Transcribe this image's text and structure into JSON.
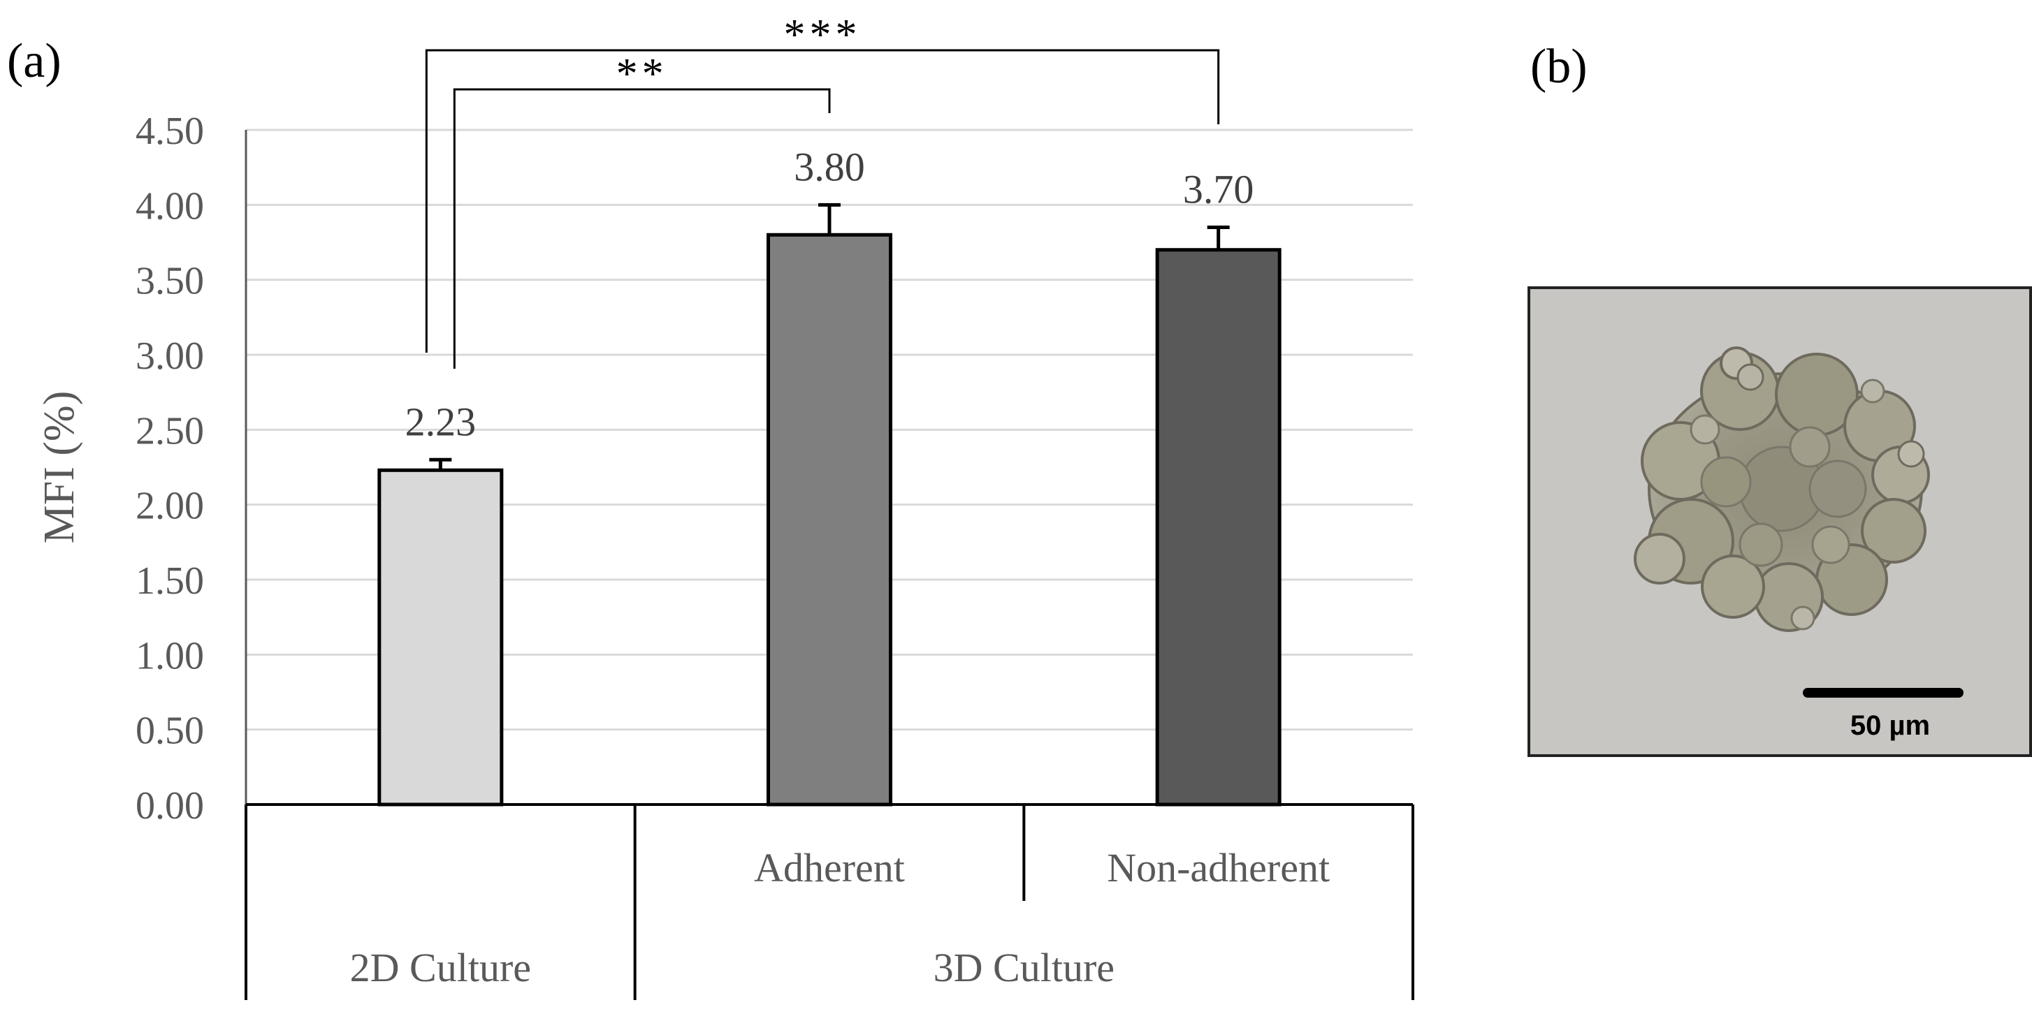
{
  "panels": {
    "a_label": "(a)",
    "b_label": "(b)"
  },
  "chart_data": {
    "type": "bar",
    "title": "",
    "xlabel": "",
    "ylabel": "MFI (%)",
    "ylim": [
      0,
      4.5
    ],
    "yticks": [
      "0.00",
      "0.50",
      "1.00",
      "1.50",
      "2.00",
      "2.50",
      "3.00",
      "3.50",
      "4.00",
      "4.50"
    ],
    "grid": true,
    "categories": [
      "",
      "Adherent",
      "Non-adherent"
    ],
    "groups": [
      "2D Culture",
      "3D Culture"
    ],
    "group_spans": [
      [
        0,
        0
      ],
      [
        1,
        2
      ]
    ],
    "values": [
      2.23,
      3.8,
      3.7
    ],
    "value_labels": [
      "2.23",
      "3.80",
      "3.70"
    ],
    "error_upper": [
      2.3,
      4.0,
      3.85
    ],
    "bar_colors": [
      "#d9d9d9",
      "#7f7f7f",
      "#595959"
    ],
    "significance": [
      {
        "from": 0,
        "to": 1,
        "label": "**"
      },
      {
        "from": 0,
        "to": 2,
        "label": "***"
      }
    ]
  },
  "micrograph": {
    "scale_label": "50 µm",
    "background_color": "#c8c6c3"
  }
}
